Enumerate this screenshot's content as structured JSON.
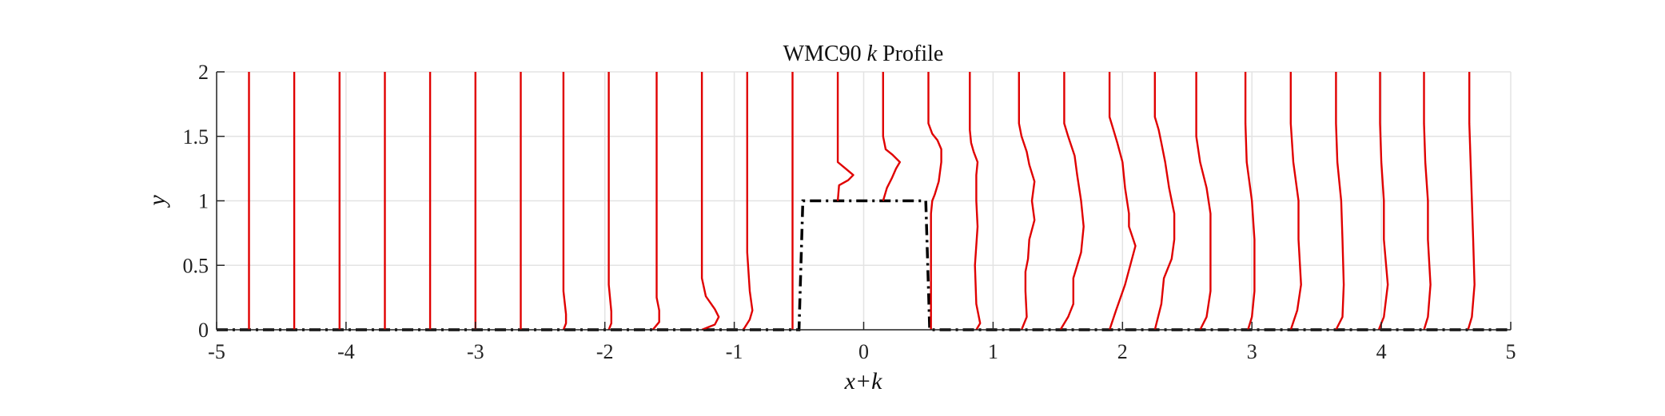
{
  "chart_data": {
    "type": "line",
    "title": "WMC90 k Profile",
    "title_parts": [
      "WMC90",
      "k",
      "Profile"
    ],
    "xlabel": "x+k",
    "ylabel": "y",
    "xlim": [
      -5,
      5
    ],
    "ylim": [
      0,
      2
    ],
    "xticks": [
      -5,
      -4,
      -3,
      -2,
      -1,
      0,
      1,
      2,
      3,
      4,
      5
    ],
    "xtick_labels": [
      "-5",
      "-4",
      "-3",
      "-2",
      "-1",
      "0",
      "1",
      "2",
      "3",
      "4",
      "5"
    ],
    "yticks": [
      0,
      0.5,
      1,
      1.5,
      2
    ],
    "ytick_labels": [
      "0",
      "0.5",
      "1",
      "1.5",
      "2"
    ],
    "grid": true,
    "colors": {
      "profiles": "#e00000",
      "geometry": "#000000"
    },
    "geometry": {
      "name": "step",
      "style": "dash-dot",
      "x": [
        -5,
        -0.5,
        -0.47,
        0.48,
        0.51,
        5
      ],
      "y": [
        0,
        0,
        1,
        1,
        0,
        0
      ]
    },
    "series": [
      {
        "x": [
          -4.75,
          -4.75,
          -4.75
        ],
        "y": [
          0,
          1,
          2
        ]
      },
      {
        "x": [
          -4.4,
          -4.4,
          -4.4
        ],
        "y": [
          0,
          1,
          2
        ]
      },
      {
        "x": [
          -4.05,
          -4.05,
          -4.05
        ],
        "y": [
          0,
          1,
          2
        ]
      },
      {
        "x": [
          -3.7,
          -3.7,
          -3.7
        ],
        "y": [
          0,
          1,
          2
        ]
      },
      {
        "x": [
          -3.35,
          -3.35,
          -3.35
        ],
        "y": [
          0,
          1,
          2
        ]
      },
      {
        "x": [
          -3.0,
          -3.0,
          -3.0
        ],
        "y": [
          0,
          1,
          2
        ]
      },
      {
        "x": [
          -2.65,
          -2.65,
          -2.65
        ],
        "y": [
          0,
          1,
          2
        ]
      },
      {
        "x": [
          -2.32,
          -2.3,
          -2.3,
          -2.32,
          -2.32
        ],
        "y": [
          0,
          0.05,
          0.12,
          0.3,
          2
        ]
      },
      {
        "x": [
          -1.97,
          -1.95,
          -1.95,
          -1.97,
          -1.97
        ],
        "y": [
          0,
          0.05,
          0.14,
          0.35,
          2
        ]
      },
      {
        "x": [
          -1.63,
          -1.58,
          -1.58,
          -1.6,
          -1.6,
          -1.6
        ],
        "y": [
          0,
          0.06,
          0.15,
          0.25,
          0.6,
          2
        ]
      },
      {
        "x": [
          -1.25,
          -1.15,
          -1.12,
          -1.15,
          -1.22,
          -1.25,
          -1.25
        ],
        "y": [
          0,
          0.04,
          0.1,
          0.16,
          0.26,
          0.4,
          2
        ]
      },
      {
        "x": [
          -0.93,
          -0.88,
          -0.86,
          -0.88,
          -0.9,
          -0.9
        ],
        "y": [
          0,
          0.08,
          0.15,
          0.3,
          0.6,
          2
        ]
      },
      {
        "x": [
          -0.55,
          -0.55,
          -0.55
        ],
        "y": [
          0,
          1,
          2
        ]
      },
      {
        "x": [
          -0.2,
          -0.19,
          -0.12,
          -0.08,
          -0.14,
          -0.2,
          -0.2
        ],
        "y": [
          1.0,
          1.12,
          1.16,
          1.2,
          1.25,
          1.3,
          2
        ]
      },
      {
        "x": [
          0.15,
          0.18,
          0.22,
          0.25,
          0.28,
          0.22,
          0.17,
          0.15,
          0.15
        ],
        "y": [
          1.0,
          1.1,
          1.18,
          1.25,
          1.3,
          1.36,
          1.4,
          1.5,
          2
        ]
      },
      {
        "x": [
          0.52,
          0.52,
          0.52,
          0.53,
          0.55,
          0.58,
          0.6,
          0.6,
          0.57,
          0.53,
          0.5,
          0.5,
          0.5
        ],
        "y": [
          0,
          0.5,
          0.9,
          1.0,
          1.05,
          1.15,
          1.3,
          1.4,
          1.47,
          1.52,
          1.6,
          1.8,
          2
        ]
      },
      {
        "x": [
          0.87,
          0.9,
          0.87,
          0.86,
          0.88,
          0.87,
          0.87,
          0.88,
          0.85,
          0.83,
          0.82,
          0.82
        ],
        "y": [
          0,
          0.05,
          0.2,
          0.5,
          0.8,
          1.0,
          1.2,
          1.3,
          1.38,
          1.45,
          1.55,
          2
        ]
      },
      {
        "x": [
          1.22,
          1.26,
          1.25,
          1.25,
          1.27,
          1.28,
          1.32,
          1.3,
          1.32,
          1.28,
          1.26,
          1.22,
          1.2,
          1.2
        ],
        "y": [
          0,
          0.1,
          0.3,
          0.45,
          0.55,
          0.7,
          0.85,
          1.0,
          1.15,
          1.28,
          1.38,
          1.5,
          1.6,
          2
        ]
      },
      {
        "x": [
          1.52,
          1.58,
          1.62,
          1.62,
          1.68,
          1.7,
          1.68,
          1.65,
          1.63,
          1.58,
          1.55,
          1.55
        ],
        "y": [
          0,
          0.1,
          0.2,
          0.4,
          0.6,
          0.8,
          1.0,
          1.2,
          1.35,
          1.5,
          1.6,
          2
        ]
      },
      {
        "x": [
          1.9,
          1.95,
          2.02,
          2.1,
          2.05,
          2.05,
          2.02,
          2.0,
          1.96,
          1.93,
          1.9,
          1.9
        ],
        "y": [
          0,
          0.15,
          0.35,
          0.65,
          0.8,
          0.9,
          1.1,
          1.3,
          1.45,
          1.55,
          1.65,
          2
        ]
      },
      {
        "x": [
          2.25,
          2.3,
          2.32,
          2.38,
          2.4,
          2.4,
          2.36,
          2.33,
          2.3,
          2.28,
          2.25,
          2.25
        ],
        "y": [
          0,
          0.2,
          0.4,
          0.55,
          0.7,
          0.9,
          1.1,
          1.3,
          1.45,
          1.55,
          1.65,
          2
        ]
      },
      {
        "x": [
          2.6,
          2.65,
          2.68,
          2.68,
          2.68,
          2.65,
          2.6,
          2.57,
          2.57
        ],
        "y": [
          0,
          0.1,
          0.3,
          0.7,
          0.9,
          1.1,
          1.3,
          1.5,
          2
        ]
      },
      {
        "x": [
          2.97,
          3.0,
          3.02,
          3.02,
          3.0,
          2.96,
          2.95,
          2.95
        ],
        "y": [
          0,
          0.1,
          0.3,
          0.7,
          1.0,
          1.3,
          1.6,
          2
        ]
      },
      {
        "x": [
          3.3,
          3.35,
          3.38,
          3.36,
          3.36,
          3.32,
          3.3,
          3.3
        ],
        "y": [
          0,
          0.15,
          0.35,
          0.7,
          1.0,
          1.3,
          1.6,
          2
        ]
      },
      {
        "x": [
          3.65,
          3.7,
          3.71,
          3.7,
          3.69,
          3.66,
          3.65,
          3.65
        ],
        "y": [
          0,
          0.1,
          0.35,
          0.7,
          1.0,
          1.3,
          1.6,
          2
        ]
      },
      {
        "x": [
          3.98,
          4.02,
          4.05,
          4.02,
          4.02,
          4.0,
          3.99,
          3.99
        ],
        "y": [
          0,
          0.1,
          0.35,
          0.7,
          1.0,
          1.3,
          1.6,
          2
        ]
      },
      {
        "x": [
          4.33,
          4.36,
          4.38,
          4.36,
          4.36,
          4.34,
          4.33,
          4.33
        ],
        "y": [
          0,
          0.1,
          0.35,
          0.7,
          1.0,
          1.3,
          1.6,
          2
        ]
      },
      {
        "x": [
          4.67,
          4.7,
          4.72,
          4.71,
          4.7,
          4.69,
          4.68,
          4.68
        ],
        "y": [
          0,
          0.1,
          0.35,
          0.7,
          1.0,
          1.3,
          1.6,
          2
        ]
      }
    ]
  }
}
